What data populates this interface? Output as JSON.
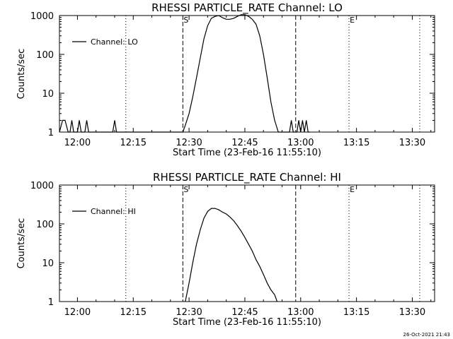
{
  "footer_timestamp": "26-Oct-2021 21:43",
  "chart_data": [
    {
      "type": "line",
      "title": "RHESSI PARTICLE_RATE Channel: LO",
      "xlabel": "Start Time (23-Feb-16 11:55:10)",
      "ylabel": "Counts/sec",
      "xlim": [
        "11:55:10",
        "13:36:00"
      ],
      "ylim": [
        1,
        1000
      ],
      "y_scale": "log",
      "x_ticks": [
        "12:00",
        "12:15",
        "12:30",
        "12:45",
        "13:00",
        "13:15",
        "13:30"
      ],
      "y_ticks": [
        "1",
        "10",
        "100",
        "1000"
      ],
      "legend": "top-left",
      "markers": [
        {
          "time": "12:13:00",
          "style": "dotted",
          "label": ""
        },
        {
          "time": "12:28:20",
          "style": "dashed",
          "label": "S"
        },
        {
          "time": "12:58:40",
          "style": "dashed",
          "label": ""
        },
        {
          "time": "13:13:00",
          "style": "dotted",
          "label": "E"
        },
        {
          "time": "13:32:00",
          "style": "dotted",
          "label": ""
        }
      ],
      "series": [
        {
          "name": "Channel: LO",
          "x": [
            "11:55:10",
            "11:56:00",
            "11:56:40",
            "11:57:30",
            "11:58:00",
            "11:58:30",
            "11:59:00",
            "11:59:30",
            "12:00:00",
            "12:00:30",
            "12:01:00",
            "12:01:30",
            "12:02:00",
            "12:02:30",
            "12:03:00",
            "12:03:30",
            "12:09:30",
            "12:10:00",
            "12:10:30",
            "12:28:20",
            "12:29:00",
            "12:30:00",
            "12:31:00",
            "12:32:00",
            "12:33:00",
            "12:34:00",
            "12:35:00",
            "12:36:00",
            "12:37:00",
            "12:38:00",
            "12:39:00",
            "12:40:00",
            "12:41:00",
            "12:42:00",
            "12:43:00",
            "12:44:00",
            "12:45:00",
            "12:46:00",
            "12:47:00",
            "12:48:00",
            "12:49:00",
            "12:50:00",
            "12:51:00",
            "12:52:00",
            "12:53:00",
            "12:54:00",
            "12:55:00",
            "12:56:00",
            "12:56:30",
            "12:57:00",
            "12:57:30",
            "12:58:00",
            "12:58:30",
            "12:59:00",
            "12:59:30",
            "13:00:00",
            "13:00:30",
            "13:01:00",
            "13:01:30",
            "13:02:00",
            "13:02:30"
          ],
          "y": [
            1,
            2,
            2,
            1,
            1,
            2,
            1,
            1,
            1,
            2,
            1,
            1,
            1,
            2,
            1,
            1,
            1,
            2,
            1,
            1,
            1.5,
            3,
            8,
            25,
            80,
            250,
            550,
            850,
            950,
            1000,
            880,
            800,
            800,
            850,
            950,
            1050,
            1050,
            950,
            800,
            600,
            300,
            100,
            25,
            6,
            2,
            1,
            1,
            1,
            1,
            1,
            2,
            1,
            1,
            1,
            2,
            1,
            2,
            1,
            2,
            1,
            1
          ]
        }
      ]
    },
    {
      "type": "line",
      "title": "RHESSI PARTICLE_RATE Channel: HI",
      "xlabel": "Start Time (23-Feb-16 11:55:10)",
      "ylabel": "Counts/sec",
      "xlim": [
        "11:55:10",
        "13:36:00"
      ],
      "ylim": [
        1,
        1000
      ],
      "y_scale": "log",
      "x_ticks": [
        "12:00",
        "12:15",
        "12:30",
        "12:45",
        "13:00",
        "13:15",
        "13:30"
      ],
      "y_ticks": [
        "1",
        "10",
        "100",
        "1000"
      ],
      "legend": "top-left",
      "markers": [
        {
          "time": "12:13:00",
          "style": "dotted",
          "label": ""
        },
        {
          "time": "12:28:20",
          "style": "dashed",
          "label": "S"
        },
        {
          "time": "12:58:40",
          "style": "dashed",
          "label": ""
        },
        {
          "time": "13:13:00",
          "style": "dotted",
          "label": "E"
        },
        {
          "time": "13:32:00",
          "style": "dotted",
          "label": ""
        }
      ],
      "series": [
        {
          "name": "Channel: HI",
          "x": [
            "12:29:00",
            "12:30:00",
            "12:31:00",
            "12:32:00",
            "12:33:00",
            "12:34:00",
            "12:35:00",
            "12:36:00",
            "12:37:00",
            "12:38:00",
            "12:39:00",
            "12:40:00",
            "12:41:00",
            "12:42:00",
            "12:43:00",
            "12:44:00",
            "12:45:00",
            "12:46:00",
            "12:47:00",
            "12:48:00",
            "12:49:00",
            "12:50:00",
            "12:51:00",
            "12:52:00",
            "12:53:00",
            "12:53:40"
          ],
          "y": [
            1,
            3,
            10,
            30,
            70,
            140,
            210,
            250,
            250,
            230,
            200,
            180,
            150,
            120,
            90,
            65,
            45,
            30,
            20,
            12,
            8,
            5,
            3,
            2,
            1.5,
            1
          ]
        }
      ]
    }
  ]
}
